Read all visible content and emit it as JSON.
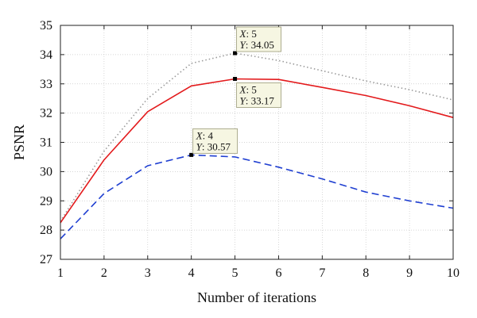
{
  "chart_data": {
    "type": "line",
    "xlabel": "Number of iterations",
    "ylabel": "PSNR",
    "xlim": [
      1,
      10
    ],
    "ylim": [
      27,
      35
    ],
    "xticks": [
      1,
      2,
      3,
      4,
      5,
      6,
      7,
      8,
      9,
      10
    ],
    "yticks": [
      27,
      28,
      29,
      30,
      31,
      32,
      33,
      34,
      35
    ],
    "grid": true,
    "x": [
      1,
      2,
      3,
      4,
      5,
      6,
      7,
      8,
      9,
      10
    ],
    "series": [
      {
        "style": "dotted",
        "color": "#9a9a9a",
        "values": [
          28.3,
          30.7,
          32.5,
          33.7,
          34.05,
          33.8,
          33.45,
          33.1,
          32.8,
          32.45
        ]
      },
      {
        "style": "solid",
        "color": "#e31a1c",
        "values": [
          28.25,
          30.4,
          32.05,
          32.93,
          33.17,
          33.15,
          32.88,
          32.6,
          32.25,
          31.85
        ]
      },
      {
        "style": "dashed",
        "color": "#1f3fd1",
        "values": [
          27.7,
          29.25,
          30.2,
          30.57,
          30.5,
          30.15,
          29.75,
          29.3,
          29.0,
          28.75
        ]
      }
    ],
    "annotations": [
      {
        "series": 0,
        "x": 5,
        "y": 34.05,
        "x_label": "X",
        "y_label": "Y",
        "x_text": ": 5",
        "y_text": ": 34.05",
        "placement": "above-right"
      },
      {
        "series": 1,
        "x": 5,
        "y": 33.17,
        "x_label": "X",
        "y_label": "Y",
        "x_text": ": 5",
        "y_text": ": 33.17",
        "placement": "below-right"
      },
      {
        "series": 2,
        "x": 4,
        "y": 30.57,
        "x_label": "X",
        "y_label": "Y",
        "x_text": ": 4",
        "y_text": ": 30.57",
        "placement": "above-right"
      }
    ]
  }
}
